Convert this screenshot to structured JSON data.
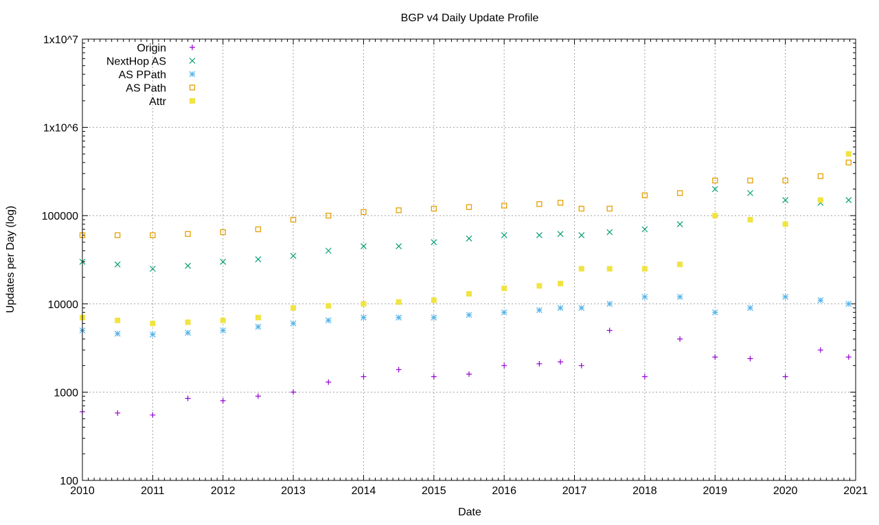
{
  "chart_data": {
    "type": "scatter",
    "title": "BGP v4 Daily Update Profile",
    "xlabel": "Date",
    "ylabel": "Updates per Day (log)",
    "xlim": [
      2010,
      2021
    ],
    "ylim": [
      100,
      10000000
    ],
    "y_scale": "log",
    "grid": true,
    "legend_position": "top-left",
    "x_ticks": [
      "2010",
      "2011",
      "2012",
      "2013",
      "2014",
      "2015",
      "2016",
      "2017",
      "2018",
      "2019",
      "2020",
      "2021"
    ],
    "y_ticks": [
      "100",
      "1000",
      "10000",
      "100000",
      "1x10^6",
      "1x10^7"
    ],
    "x": [
      2010.0,
      2010.5,
      2011.0,
      2011.5,
      2012.0,
      2012.5,
      2013.0,
      2013.5,
      2014.0,
      2014.5,
      2015.0,
      2015.5,
      2016.0,
      2016.5,
      2016.8,
      2017.1,
      2017.5,
      2018.0,
      2018.5,
      2019.0,
      2019.5,
      2020.0,
      2020.5,
      2020.9
    ],
    "series": [
      {
        "name": "Origin",
        "marker": "plus",
        "color": "#9400d3",
        "values": [
          600,
          580,
          550,
          850,
          800,
          900,
          1000,
          1300,
          1500,
          1800,
          1500,
          1600,
          2000,
          2100,
          2200,
          2000,
          5000,
          1500,
          4000,
          2500,
          2400,
          1500,
          3000,
          2500
        ]
      },
      {
        "name": "NextHop AS",
        "marker": "cross",
        "color": "#009e73",
        "values": [
          30000,
          28000,
          25000,
          27000,
          30000,
          32000,
          35000,
          40000,
          45000,
          45000,
          50000,
          55000,
          60000,
          60000,
          62000,
          60000,
          65000,
          70000,
          80000,
          200000,
          180000,
          150000,
          140000,
          150000
        ]
      },
      {
        "name": "AS PPath",
        "marker": "star",
        "color": "#56b4e9",
        "values": [
          5000,
          4600,
          4500,
          4700,
          5000,
          5500,
          6000,
          6500,
          7000,
          7000,
          7000,
          7500,
          8000,
          8500,
          9000,
          9000,
          10000,
          12000,
          12000,
          8000,
          9000,
          12000,
          11000,
          10000
        ]
      },
      {
        "name": "AS Path",
        "marker": "open-square",
        "color": "#e69f00",
        "values": [
          60000,
          60000,
          60000,
          62000,
          65000,
          70000,
          90000,
          100000,
          110000,
          115000,
          120000,
          125000,
          130000,
          135000,
          140000,
          120000,
          120000,
          170000,
          180000,
          250000,
          250000,
          250000,
          280000,
          400000
        ]
      },
      {
        "name": "Attr",
        "marker": "filled-square",
        "color": "#f0e442",
        "values": [
          7000,
          6500,
          6000,
          6200,
          6500,
          7000,
          9000,
          9500,
          10000,
          10500,
          11000,
          13000,
          15000,
          16000,
          17000,
          25000,
          25000,
          25000,
          28000,
          100000,
          90000,
          80000,
          150000,
          500000
        ]
      }
    ]
  }
}
